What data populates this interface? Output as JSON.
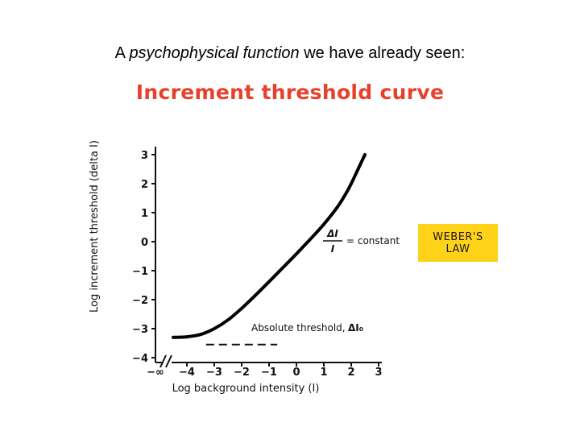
{
  "slide": {
    "heading_prefix": "A ",
    "heading_emphasis": "psychophysical function",
    "heading_suffix": " we have already seen:"
  },
  "chart_data": {
    "type": "line",
    "title": "Increment threshold curve",
    "xlabel": "Log background intensity (I)",
    "ylabel": "Log increment threshold (delta I)",
    "xlim": [
      -4.6,
      3
    ],
    "ylim": [
      -4.3,
      3.4
    ],
    "x_ticks": [
      -4,
      -3,
      -2,
      -1,
      0,
      1,
      2,
      3
    ],
    "x_tick_labels": [
      "−4",
      "−3",
      "−2",
      "−1",
      "0",
      "1",
      "2",
      "3"
    ],
    "x_break_label": "−∞",
    "y_ticks": [
      3,
      2,
      1,
      0,
      -1,
      -2,
      -3,
      -4
    ],
    "y_tick_labels": [
      "3",
      "2",
      "1",
      "0",
      "−1",
      "−2",
      "−3",
      "−4"
    ],
    "grid": false,
    "series": [
      {
        "x": [
          -4.5,
          -4.0,
          -3.5,
          -3.0,
          -2.5,
          -2.0,
          -1.5,
          -1.0,
          -0.5,
          0.0,
          0.5,
          1.0,
          1.5,
          1.8,
          2.0,
          2.3,
          2.5
        ],
        "y": [
          -3.3,
          -3.28,
          -3.2,
          -3.0,
          -2.7,
          -2.3,
          -1.85,
          -1.38,
          -0.9,
          -0.42,
          0.08,
          0.6,
          1.2,
          1.65,
          2.0,
          2.6,
          3.0
        ]
      }
    ],
    "reference_lines": [
      {
        "x": [
          -3.3,
          -0.7
        ],
        "y": [
          -3.55,
          -3.55
        ],
        "style": "dashed"
      }
    ],
    "annotations": {
      "weber_fraction_numerator": "ΔI",
      "weber_fraction_denominator": "I",
      "weber_constant": "= constant",
      "absolute_threshold": "Absolute threshold,",
      "absolute_threshold_symbol": "ΔI₀",
      "weber_box_line1": "WEBER'S",
      "weber_box_line2": "LAW",
      "weber_box_color": "#ffd21a"
    },
    "title_color": "#e8402c"
  }
}
